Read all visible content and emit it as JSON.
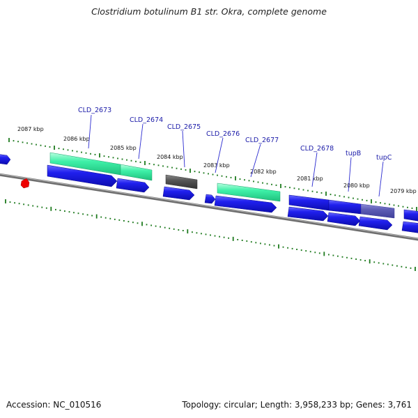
{
  "title": "Clostridium botulinum B1 str. Okra, complete genome",
  "footer": {
    "accession": "Accession: NC_010516",
    "stats": "Topology: circular; Length: 3,958,233 bp; Genes: 3,761"
  },
  "colors": {
    "gene_forward": "#1a1aee",
    "gene_cds_green": "#3ef0a8",
    "gene_gray": "#555555",
    "gene_purple": "#5c5cb4",
    "backbone": "#8a8a8a",
    "tick": "#1e7a1e",
    "label_line": "#2a2ad0",
    "marker": "#ee0000"
  },
  "scale_labels": [
    "2087 kbp",
    "2086 kbp",
    "2085 kbp",
    "2084 kbp",
    "2083 kbp",
    "2082 kbp",
    "2081 kbp",
    "2080 kbp",
    "2079 kbp"
  ],
  "gene_labels": [
    "CLD_2673",
    "CLD_2674",
    "CLD_2675",
    "CLD_2676",
    "CLD_2677",
    "CLD_2678",
    "tupB",
    "tupC"
  ]
}
